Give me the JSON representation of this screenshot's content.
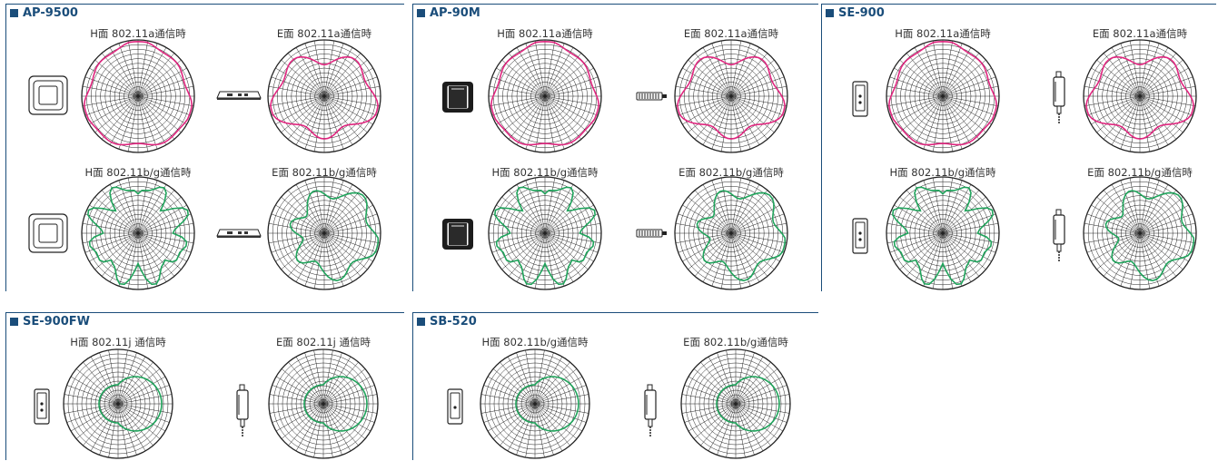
{
  "colors": {
    "a_band": "#e0267f",
    "bg_band": "#1fa35b",
    "frame": "#1a4d7a",
    "grid": "#222222"
  },
  "panels": [
    {
      "title": "AP-9500",
      "device": "ap9500",
      "plots": [
        {
          "label": "H面 802.11a通信時",
          "band": "a"
        },
        {
          "label": "E面 802.11a通信時",
          "band": "a"
        },
        {
          "label": "H面 802.11b/g通信時",
          "band": "bg"
        },
        {
          "label": "E面 802.11b/g通信時",
          "band": "bg"
        }
      ]
    },
    {
      "title": "AP-90M",
      "device": "ap90m",
      "plots": [
        {
          "label": "H面 802.11a通信時",
          "band": "a"
        },
        {
          "label": "E面 802.11a通信時",
          "band": "a"
        },
        {
          "label": "H面 802.11b/g通信時",
          "band": "bg"
        },
        {
          "label": "E面 802.11b/g通信時",
          "band": "bg"
        }
      ]
    },
    {
      "title": "SE-900",
      "device": "se900",
      "plots": [
        {
          "label": "H面 802.11a通信時",
          "band": "a"
        },
        {
          "label": "E面 802.11a通信時",
          "band": "a"
        },
        {
          "label": "H面 802.11b/g通信時",
          "band": "bg"
        },
        {
          "label": "E面 802.11b/g通信時",
          "band": "bg"
        }
      ]
    },
    {
      "title": "SE-900FW",
      "device": "se900",
      "plots": [
        {
          "label": "H面 802.11j 通信時",
          "band": "bg"
        },
        {
          "label": "E面 802.11j 通信時",
          "band": "bg"
        }
      ]
    },
    {
      "title": "SB-520",
      "device": "se900",
      "plots": [
        {
          "label": "H面 802.11b/g通信時",
          "band": "bg"
        },
        {
          "label": "E面 802.11b/g通信時",
          "band": "bg"
        }
      ]
    }
  ]
}
